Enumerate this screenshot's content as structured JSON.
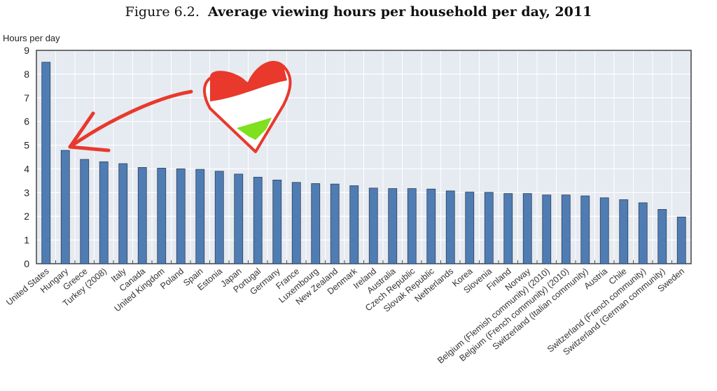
{
  "chart_data": {
    "type": "bar",
    "title_prefix": "Figure 6.2.",
    "title": "Average viewing hours per household per day, 2011",
    "xlabel": "",
    "ylabel": "Hours per day",
    "ylim": [
      0,
      9
    ],
    "yticks": [
      0,
      1,
      2,
      3,
      4,
      5,
      6,
      7,
      8,
      9
    ],
    "grid": true,
    "categories": [
      "United States",
      "Hungary",
      "Greece",
      "Turkey (2008)",
      "Italy",
      "Canada",
      "United Kingdom",
      "Poland",
      "Spain",
      "Estonia",
      "Japan",
      "Portugal",
      "Germany",
      "France",
      "Luxembourg",
      "New Zealand",
      "Denmark",
      "Ireland",
      "Australia",
      "Czech Republic",
      "Slovak Republic",
      "Netherlands",
      "Korea",
      "Slovenia",
      "Finland",
      "Norway",
      "Belgium (Flemish community) (2010)",
      "Belgium (French community) (2010)",
      "Switzerland (Italian community)",
      "Austria",
      "Chile",
      "Switzerland (French community)",
      "Switzerland (German community)",
      "Sweden"
    ],
    "values": [
      8.5,
      4.78,
      4.4,
      4.3,
      4.22,
      4.06,
      4.03,
      4.0,
      3.98,
      3.9,
      3.78,
      3.65,
      3.53,
      3.43,
      3.38,
      3.36,
      3.29,
      3.19,
      3.17,
      3.17,
      3.15,
      3.07,
      3.02,
      3.01,
      2.96,
      2.96,
      2.9,
      2.9,
      2.86,
      2.78,
      2.7,
      2.57,
      2.29,
      1.97
    ],
    "bar_color": "#4f7db3",
    "plot_background": "#e6eaf1"
  },
  "annotation": {
    "type": "hand-drawn heart in Hungarian flag colors with arrow pointing to Hungary bar",
    "colors": [
      "#e8392c",
      "#ffffff",
      "#7ee01e"
    ]
  }
}
